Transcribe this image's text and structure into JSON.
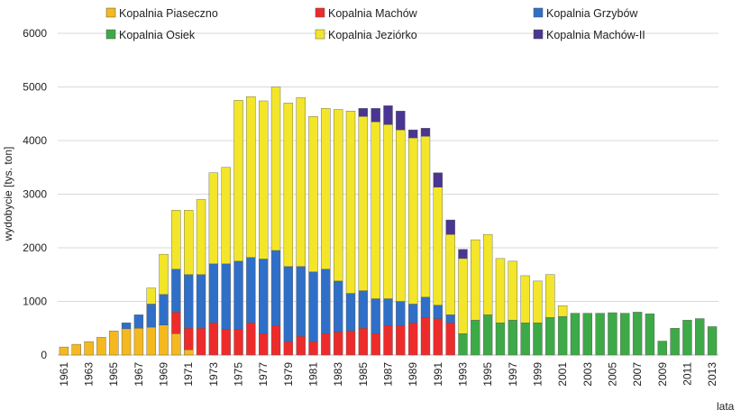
{
  "chart_data": {
    "type": "bar",
    "stacked": true,
    "ylabel": "wydobycie [tys. ton]",
    "xlabel": "lata",
    "ylim": [
      0,
      6000
    ],
    "yticks": [
      0,
      1000,
      2000,
      3000,
      4000,
      5000,
      6000
    ],
    "grid": true,
    "legend_position": "top",
    "categories": [
      "1961",
      "1962",
      "1963",
      "1964",
      "1965",
      "1966",
      "1967",
      "1968",
      "1969",
      "1970",
      "1971",
      "1972",
      "1973",
      "1974",
      "1975",
      "1976",
      "1977",
      "1978",
      "1979",
      "1980",
      "1981",
      "1982",
      "1983",
      "1984",
      "1985",
      "1986",
      "1987",
      "1988",
      "1989",
      "1990",
      "1991",
      "1992",
      "1993",
      "1994",
      "1995",
      "1996",
      "1997",
      "1998",
      "1999",
      "2000",
      "2001",
      "2002",
      "2003",
      "2004",
      "2005",
      "2006",
      "2007",
      "2008",
      "2009",
      "2010",
      "2011",
      "2012",
      "2013"
    ],
    "xtick_labels": [
      "1961",
      "1963",
      "1965",
      "1967",
      "1969",
      "1971",
      "1973",
      "1975",
      "1977",
      "1979",
      "1981",
      "1983",
      "1985",
      "1987",
      "1989",
      "1991",
      "1993",
      "1995",
      "1997",
      "1999",
      "2001",
      "2003",
      "2005",
      "2007",
      "2009",
      "2011",
      "2013"
    ],
    "series": [
      {
        "name": "Kopalnia Piaseczno",
        "color": "#f5b81e",
        "values": [
          150,
          200,
          250,
          330,
          450,
          490,
          500,
          520,
          560,
          400,
          100,
          0,
          0,
          0,
          0,
          0,
          0,
          0,
          0,
          0,
          0,
          0,
          0,
          0,
          0,
          0,
          0,
          0,
          0,
          0,
          0,
          0,
          0,
          0,
          0,
          0,
          0,
          0,
          0,
          0,
          0,
          0,
          0,
          0,
          0,
          0,
          0,
          0,
          0,
          0,
          0,
          0,
          0
        ]
      },
      {
        "name": "Kopalnia Machów",
        "color": "#ee2b2b",
        "values": [
          0,
          0,
          0,
          0,
          0,
          0,
          0,
          0,
          0,
          400,
          400,
          500,
          600,
          480,
          480,
          600,
          400,
          550,
          250,
          350,
          250,
          400,
          430,
          450,
          500,
          400,
          550,
          550,
          600,
          700,
          680,
          600,
          0,
          0,
          0,
          0,
          0,
          0,
          0,
          0,
          0,
          0,
          0,
          0,
          0,
          0,
          0,
          0,
          0,
          0,
          0,
          0,
          0
        ]
      },
      {
        "name": "Kopalnia Grzybów",
        "color": "#2f6fc8",
        "values": [
          0,
          0,
          0,
          0,
          0,
          110,
          250,
          430,
          570,
          800,
          1000,
          1000,
          1100,
          1220,
          1270,
          1220,
          1390,
          1400,
          1400,
          1300,
          1300,
          1200,
          950,
          700,
          700,
          650,
          500,
          450,
          350,
          380,
          250,
          150,
          0,
          0,
          0,
          0,
          0,
          0,
          0,
          0,
          0,
          0,
          0,
          0,
          0,
          0,
          0,
          0,
          0,
          0,
          0,
          0,
          0
        ]
      },
      {
        "name": "Kopalnia Osiek",
        "color": "#3daa47",
        "values": [
          0,
          0,
          0,
          0,
          0,
          0,
          0,
          0,
          0,
          0,
          0,
          0,
          0,
          0,
          0,
          0,
          0,
          0,
          0,
          0,
          0,
          0,
          0,
          0,
          0,
          0,
          0,
          0,
          0,
          0,
          0,
          0,
          400,
          650,
          750,
          600,
          650,
          600,
          600,
          700,
          720,
          780,
          780,
          780,
          790,
          780,
          800,
          770,
          260,
          500,
          650,
          680,
          530
        ]
      },
      {
        "name": "Kopalnia Jeziórko",
        "color": "#f3e62a",
        "values": [
          0,
          0,
          0,
          0,
          0,
          0,
          0,
          300,
          750,
          1100,
          1200,
          1400,
          1700,
          1800,
          3000,
          3000,
          2950,
          3050,
          3050,
          3150,
          2900,
          3000,
          3200,
          3400,
          3250,
          3300,
          3250,
          3200,
          3100,
          3000,
          2200,
          1500,
          1400,
          1500,
          1500,
          1200,
          1100,
          880,
          780,
          800,
          200,
          0,
          0,
          0,
          0,
          0,
          0,
          0,
          0,
          0,
          0,
          0,
          0
        ]
      },
      {
        "name": "Kopalnia Machów-II",
        "color": "#4a3592",
        "values": [
          0,
          0,
          0,
          0,
          0,
          0,
          0,
          0,
          0,
          0,
          0,
          0,
          0,
          0,
          0,
          0,
          0,
          0,
          0,
          0,
          0,
          0,
          0,
          0,
          150,
          250,
          350,
          350,
          150,
          150,
          270,
          270,
          170,
          0,
          0,
          0,
          0,
          0,
          0,
          0,
          0,
          0,
          0,
          0,
          0,
          0,
          0,
          0,
          0,
          0,
          0,
          0,
          0
        ]
      }
    ]
  }
}
